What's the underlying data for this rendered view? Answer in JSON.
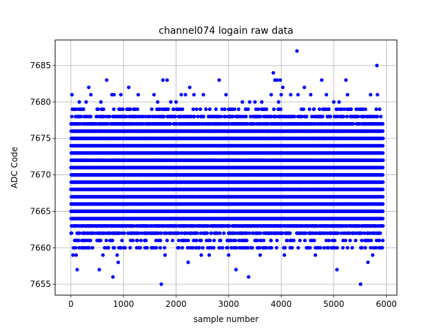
{
  "chart_data": {
    "type": "scatter",
    "title": "channel074 logain raw data",
    "xlabel": "sample number",
    "ylabel": "ADC Code",
    "xlim": [
      -300,
      6200
    ],
    "ylim": [
      7653.5,
      7688.5
    ],
    "xticks": [
      0,
      1000,
      2000,
      3000,
      4000,
      5000,
      6000
    ],
    "yticks": [
      7655,
      7660,
      7665,
      7670,
      7675,
      7680,
      7685
    ],
    "grid": true,
    "series": [
      {
        "color": "#0000ff",
        "marker": "dot",
        "n_samples": 5940,
        "band_levels": [
          7662,
          7663,
          7664,
          7665,
          7666,
          7667,
          7668,
          7669,
          7670,
          7671,
          7672,
          7673,
          7674,
          7675,
          7676,
          7677,
          7678
        ],
        "sparse_levels": [
          7660,
          7661,
          7679
        ],
        "outliers": [
          {
            "x": 20,
            "y": 7681
          },
          {
            "x": 30,
            "y": 7679
          },
          {
            "x": 40,
            "y": 7659
          },
          {
            "x": 90,
            "y": 7660
          },
          {
            "x": 100,
            "y": 7659
          },
          {
            "x": 120,
            "y": 7657
          },
          {
            "x": 160,
            "y": 7680
          },
          {
            "x": 240,
            "y": 7679
          },
          {
            "x": 250,
            "y": 7660
          },
          {
            "x": 290,
            "y": 7680
          },
          {
            "x": 330,
            "y": 7660
          },
          {
            "x": 340,
            "y": 7682
          },
          {
            "x": 380,
            "y": 7681
          },
          {
            "x": 410,
            "y": 7660
          },
          {
            "x": 540,
            "y": 7657
          },
          {
            "x": 570,
            "y": 7680
          },
          {
            "x": 610,
            "y": 7659
          },
          {
            "x": 680,
            "y": 7683
          },
          {
            "x": 690,
            "y": 7660
          },
          {
            "x": 780,
            "y": 7681
          },
          {
            "x": 800,
            "y": 7656
          },
          {
            "x": 820,
            "y": 7681
          },
          {
            "x": 880,
            "y": 7659
          },
          {
            "x": 900,
            "y": 7658
          },
          {
            "x": 950,
            "y": 7681
          },
          {
            "x": 1010,
            "y": 7660
          },
          {
            "x": 1100,
            "y": 7682
          },
          {
            "x": 1280,
            "y": 7681
          },
          {
            "x": 1320,
            "y": 7660
          },
          {
            "x": 1450,
            "y": 7660
          },
          {
            "x": 1580,
            "y": 7681
          },
          {
            "x": 1650,
            "y": 7680
          },
          {
            "x": 1700,
            "y": 7660
          },
          {
            "x": 1720,
            "y": 7655
          },
          {
            "x": 1750,
            "y": 7683
          },
          {
            "x": 1790,
            "y": 7659
          },
          {
            "x": 1830,
            "y": 7683
          },
          {
            "x": 1900,
            "y": 7680
          },
          {
            "x": 2000,
            "y": 7680
          },
          {
            "x": 2100,
            "y": 7681
          },
          {
            "x": 2180,
            "y": 7681
          },
          {
            "x": 2230,
            "y": 7658
          },
          {
            "x": 2260,
            "y": 7682
          },
          {
            "x": 2340,
            "y": 7681
          },
          {
            "x": 2480,
            "y": 7659
          },
          {
            "x": 2520,
            "y": 7681
          },
          {
            "x": 2630,
            "y": 7659
          },
          {
            "x": 2820,
            "y": 7683
          },
          {
            "x": 2950,
            "y": 7681
          },
          {
            "x": 3000,
            "y": 7659
          },
          {
            "x": 3140,
            "y": 7657
          },
          {
            "x": 3260,
            "y": 7680
          },
          {
            "x": 3290,
            "y": 7660
          },
          {
            "x": 3380,
            "y": 7656
          },
          {
            "x": 3400,
            "y": 7680
          },
          {
            "x": 3450,
            "y": 7660
          },
          {
            "x": 3500,
            "y": 7680
          },
          {
            "x": 3560,
            "y": 7660
          },
          {
            "x": 3600,
            "y": 7659
          },
          {
            "x": 3630,
            "y": 7680
          },
          {
            "x": 3720,
            "y": 7660
          },
          {
            "x": 3810,
            "y": 7681
          },
          {
            "x": 3850,
            "y": 7684
          },
          {
            "x": 3880,
            "y": 7683
          },
          {
            "x": 3920,
            "y": 7683
          },
          {
            "x": 3950,
            "y": 7680
          },
          {
            "x": 3980,
            "y": 7683
          },
          {
            "x": 4000,
            "y": 7681
          },
          {
            "x": 4030,
            "y": 7682
          },
          {
            "x": 4060,
            "y": 7659
          },
          {
            "x": 4180,
            "y": 7681
          },
          {
            "x": 4300,
            "y": 7687
          },
          {
            "x": 4320,
            "y": 7681
          },
          {
            "x": 4440,
            "y": 7682
          },
          {
            "x": 4480,
            "y": 7660
          },
          {
            "x": 4560,
            "y": 7681
          },
          {
            "x": 4650,
            "y": 7659
          },
          {
            "x": 4770,
            "y": 7683
          },
          {
            "x": 4860,
            "y": 7681
          },
          {
            "x": 4960,
            "y": 7660
          },
          {
            "x": 5000,
            "y": 7680
          },
          {
            "x": 5060,
            "y": 7657
          },
          {
            "x": 5100,
            "y": 7680
          },
          {
            "x": 5230,
            "y": 7683
          },
          {
            "x": 5260,
            "y": 7681
          },
          {
            "x": 5350,
            "y": 7660
          },
          {
            "x": 5510,
            "y": 7655
          },
          {
            "x": 5530,
            "y": 7660
          },
          {
            "x": 5650,
            "y": 7658
          },
          {
            "x": 5700,
            "y": 7681
          },
          {
            "x": 5740,
            "y": 7659
          },
          {
            "x": 5820,
            "y": 7685
          },
          {
            "x": 5830,
            "y": 7681
          },
          {
            "x": 5880,
            "y": 7660
          }
        ]
      }
    ]
  }
}
